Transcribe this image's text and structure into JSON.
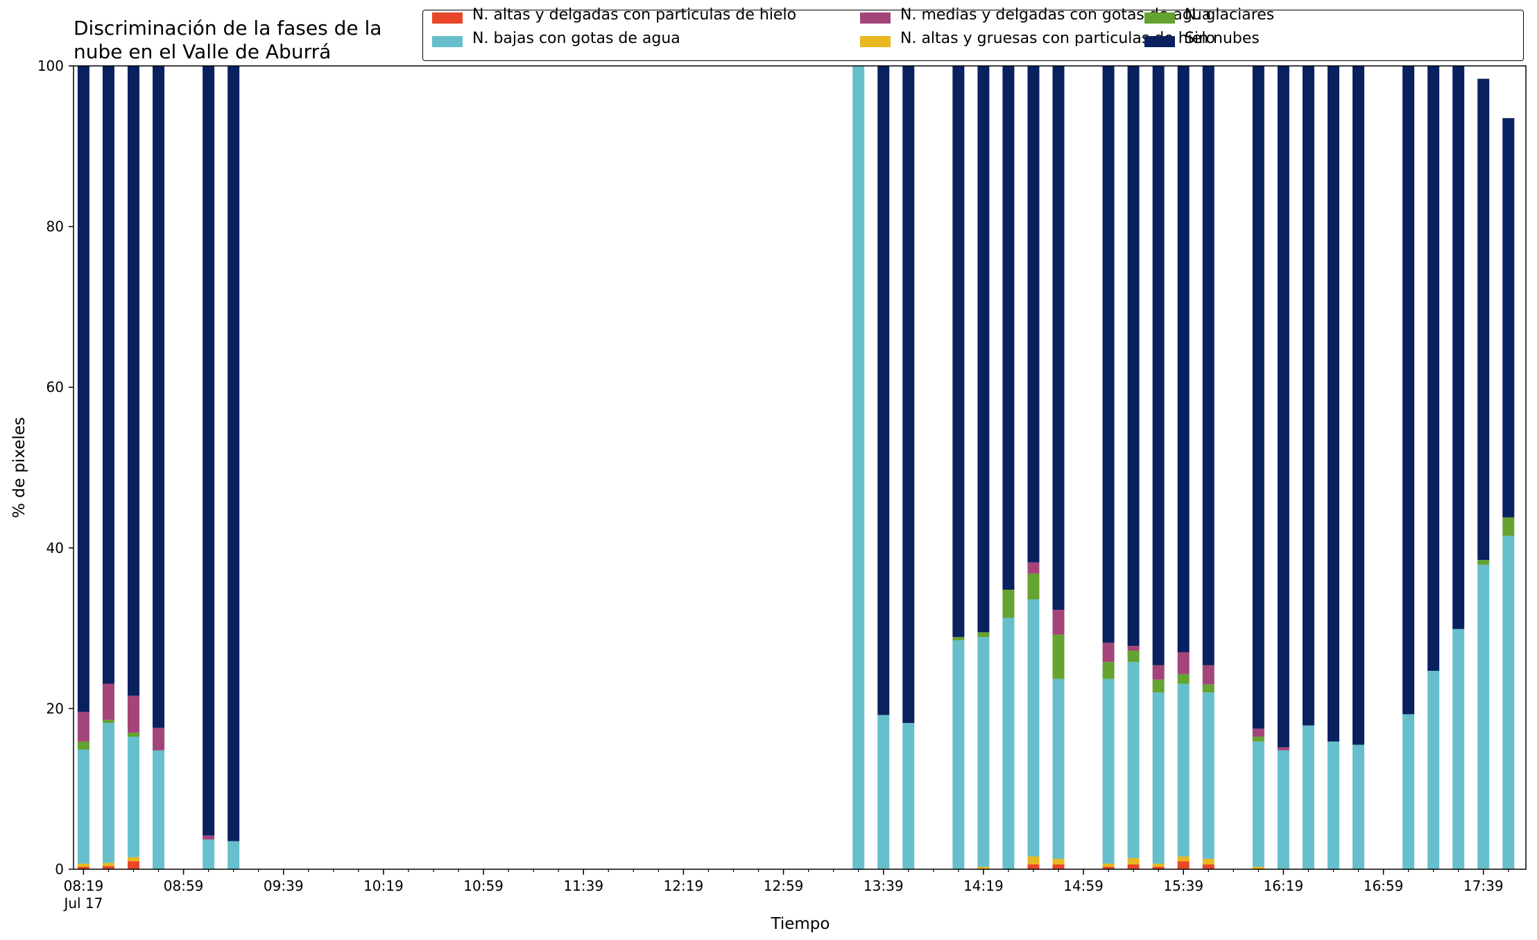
{
  "title_lines": [
    "Discriminación de la fases de la",
    "nube en el Valle de Aburrá"
  ],
  "chart_data": {
    "type": "bar",
    "stacked": true,
    "title": "Discriminación de la fases de la nube en el Valle de Aburrá",
    "xlabel": "Tiempo",
    "ylabel": "% de pixeles",
    "ylim": [
      0,
      100
    ],
    "yticks": [
      0,
      20,
      40,
      60,
      80,
      100
    ],
    "xticks": [
      {
        "t": "08:19",
        "label": "08:19",
        "sublabel": "Jul 17"
      },
      {
        "t": "08:59",
        "label": "08:59"
      },
      {
        "t": "09:39",
        "label": "09:39"
      },
      {
        "t": "10:19",
        "label": "10:19"
      },
      {
        "t": "10:59",
        "label": "10:59"
      },
      {
        "t": "11:39",
        "label": "11:39"
      },
      {
        "t": "12:19",
        "label": "12:19"
      },
      {
        "t": "12:59",
        "label": "12:59"
      },
      {
        "t": "13:39",
        "label": "13:39"
      },
      {
        "t": "14:19",
        "label": "14:19"
      },
      {
        "t": "14:59",
        "label": "14:59"
      },
      {
        "t": "15:39",
        "label": "15:39"
      },
      {
        "t": "16:19",
        "label": "16:19"
      },
      {
        "t": "16:59",
        "label": "16:59"
      },
      {
        "t": "17:39",
        "label": "17:39"
      }
    ],
    "xrange": [
      "08:15",
      "17:56"
    ],
    "grid": false,
    "legend_position": "top-right",
    "x": [
      "08:19",
      "08:29",
      "08:39",
      "08:49",
      "09:09",
      "09:19",
      "13:29",
      "13:39",
      "13:49",
      "14:09",
      "14:19",
      "14:29",
      "14:39",
      "14:49",
      "15:09",
      "15:19",
      "15:29",
      "15:39",
      "15:49",
      "16:09",
      "16:19",
      "16:29",
      "16:39",
      "16:49",
      "17:09",
      "17:19",
      "17:29",
      "17:39",
      "17:49"
    ],
    "series": [
      {
        "name": "N. altas y delgadas con particulas de hielo",
        "color": "#e8472a",
        "values": [
          0.3,
          0.4,
          1.0,
          0,
          0,
          0,
          0,
          0,
          0,
          0,
          0,
          0,
          0.6,
          0.6,
          0.3,
          0.6,
          0.3,
          1.0,
          0.6,
          0,
          0,
          0,
          0,
          0,
          0,
          0,
          0,
          0,
          0
        ]
      },
      {
        "name": "N. altas y gruesas con particulas de hielo",
        "color": "#e8b820",
        "values": [
          0.4,
          0.4,
          0.5,
          0,
          0,
          0,
          0,
          0,
          0,
          0,
          0.3,
          0,
          1.0,
          0.7,
          0.4,
          0.8,
          0.4,
          0.6,
          0.7,
          0.3,
          0,
          0,
          0,
          0,
          0,
          0,
          0,
          0,
          0
        ]
      },
      {
        "name": "N. bajas con gotas de agua",
        "color": "#67bfcc",
        "values": [
          14.2,
          17.4,
          15.0,
          14.8,
          3.7,
          3.5,
          100.0,
          19.2,
          18.2,
          28.5,
          28.6,
          31.3,
          32.0,
          22.4,
          23.0,
          24.4,
          21.3,
          21.5,
          20.7,
          15.6,
          14.8,
          17.9,
          15.9,
          15.5,
          19.3,
          24.7,
          29.9,
          37.9,
          41.5
        ]
      },
      {
        "name": "N. glaciares",
        "color": "#64a330",
        "values": [
          1.0,
          0.4,
          0.5,
          0,
          0,
          0,
          0,
          0,
          0,
          0.4,
          0.6,
          3.5,
          3.2,
          5.5,
          2.1,
          1.4,
          1.6,
          1.2,
          1.0,
          0.6,
          0,
          0,
          0,
          0,
          0,
          0,
          0,
          0.6,
          2.3
        ]
      },
      {
        "name": "N. medias y delgadas con gotas de agua",
        "color": "#a4457a",
        "values": [
          3.7,
          4.5,
          4.6,
          2.8,
          0.5,
          0,
          0,
          0,
          0,
          0,
          0,
          0,
          1.4,
          3.1,
          2.4,
          0.6,
          1.8,
          2.7,
          2.4,
          1.0,
          0.4,
          0,
          0,
          0,
          0,
          0,
          0,
          0,
          0
        ]
      },
      {
        "name": "Sin nubes",
        "color": "#0a2160",
        "values": [
          80.4,
          76.9,
          78.4,
          82.4,
          95.8,
          96.5,
          0,
          80.8,
          81.8,
          71.1,
          70.5,
          65.2,
          61.8,
          67.7,
          71.8,
          72.2,
          74.6,
          73.0,
          74.6,
          82.5,
          84.8,
          82.1,
          84.1,
          84.5,
          80.7,
          75.3,
          70.1,
          59.9,
          49.7
        ]
      }
    ]
  },
  "legend_order": [
    0,
    2,
    4,
    1,
    3,
    5
  ]
}
